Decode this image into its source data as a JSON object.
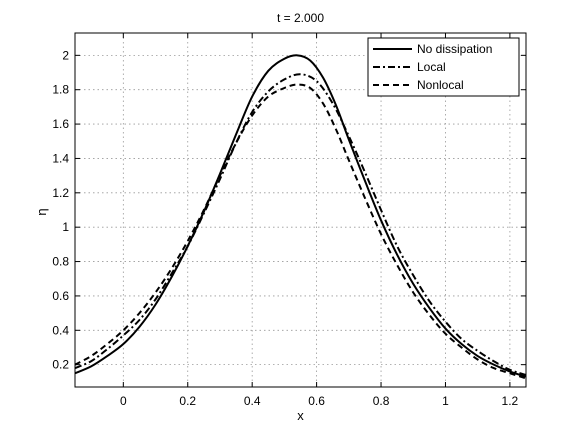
{
  "chart_data": {
    "type": "line",
    "title": "t = 2.000",
    "xlabel": "x",
    "ylabel": "η",
    "xlim": [
      -0.15,
      1.25
    ],
    "ylim": [
      0.07,
      2.13
    ],
    "xticks": [
      0,
      0.2,
      0.4,
      0.6,
      0.8,
      1,
      1.2
    ],
    "xtick_labels": [
      "0",
      "0.2",
      "0.4",
      "0.6",
      "0.8",
      "1",
      "1.2"
    ],
    "yticks": [
      0.2,
      0.4,
      0.6,
      0.8,
      1,
      1.2,
      1.4,
      1.6,
      1.8,
      2
    ],
    "ytick_labels": [
      "0.2",
      "0.4",
      "0.6",
      "0.8",
      "1",
      "1.2",
      "1.4",
      "1.6",
      "1.8",
      "2"
    ],
    "grid": true,
    "legend_position": "top-right",
    "series": [
      {
        "name": "No dissipation",
        "style": "solid",
        "x": [
          -0.15,
          -0.1,
          -0.05,
          0,
          0.05,
          0.1,
          0.15,
          0.2,
          0.25,
          0.3,
          0.35,
          0.4,
          0.45,
          0.5,
          0.54,
          0.58,
          0.62,
          0.66,
          0.7,
          0.75,
          0.8,
          0.85,
          0.9,
          0.95,
          1.0,
          1.05,
          1.1,
          1.15,
          1.2,
          1.25
        ],
        "y": [
          0.15,
          0.19,
          0.25,
          0.32,
          0.42,
          0.55,
          0.71,
          0.89,
          1.09,
          1.31,
          1.54,
          1.76,
          1.91,
          1.98,
          2.0,
          1.97,
          1.87,
          1.71,
          1.51,
          1.27,
          1.04,
          0.84,
          0.67,
          0.53,
          0.41,
          0.32,
          0.25,
          0.2,
          0.16,
          0.13
        ]
      },
      {
        "name": "Local",
        "style": "dashdot",
        "x": [
          -0.15,
          -0.1,
          -0.05,
          0,
          0.05,
          0.1,
          0.15,
          0.2,
          0.25,
          0.3,
          0.35,
          0.4,
          0.45,
          0.5,
          0.55,
          0.6,
          0.65,
          0.7,
          0.75,
          0.8,
          0.85,
          0.9,
          0.95,
          1.0,
          1.05,
          1.1,
          1.15,
          1.2,
          1.25
        ],
        "y": [
          0.18,
          0.22,
          0.29,
          0.37,
          0.46,
          0.58,
          0.73,
          0.89,
          1.08,
          1.28,
          1.49,
          1.67,
          1.79,
          1.86,
          1.89,
          1.85,
          1.72,
          1.53,
          1.32,
          1.1,
          0.89,
          0.72,
          0.57,
          0.45,
          0.35,
          0.28,
          0.22,
          0.17,
          0.14
        ]
      },
      {
        "name": "Nonlocal",
        "style": "dashed",
        "x": [
          -0.15,
          -0.1,
          -0.05,
          0,
          0.05,
          0.1,
          0.15,
          0.2,
          0.25,
          0.3,
          0.35,
          0.4,
          0.45,
          0.5,
          0.54,
          0.58,
          0.62,
          0.66,
          0.7,
          0.75,
          0.8,
          0.85,
          0.9,
          0.95,
          1.0,
          1.05,
          1.1,
          1.15,
          1.2,
          1.25
        ],
        "y": [
          0.2,
          0.25,
          0.32,
          0.4,
          0.5,
          0.62,
          0.76,
          0.92,
          1.1,
          1.3,
          1.49,
          1.65,
          1.76,
          1.81,
          1.83,
          1.81,
          1.72,
          1.57,
          1.39,
          1.17,
          0.96,
          0.78,
          0.62,
          0.49,
          0.38,
          0.3,
          0.23,
          0.18,
          0.15,
          0.12
        ]
      }
    ]
  }
}
